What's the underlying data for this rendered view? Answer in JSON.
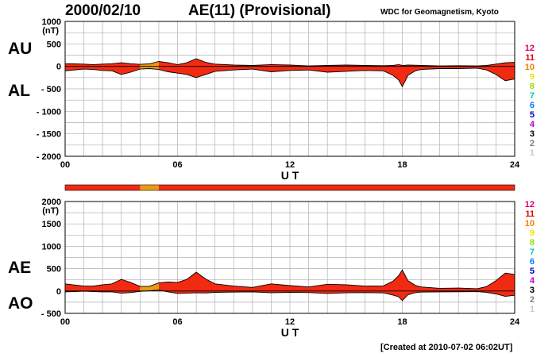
{
  "header": {
    "date": "2000/02/10",
    "title": "AE(11) (Provisional)",
    "credit": "WDC for Geomagnetism, Kyoto"
  },
  "footer": {
    "created": "[Created at 2010-07-02 06:02UT]"
  },
  "side_labels": {
    "au": "AU",
    "al": "AL",
    "ae": "AE",
    "ao": "AO"
  },
  "level_legend": {
    "labels": [
      "12",
      "11",
      "10",
      "9",
      "8",
      "7",
      "6",
      "5",
      "4",
      "3",
      "2",
      "1"
    ],
    "colors": [
      "#e0006e",
      "#e00000",
      "#f08000",
      "#e8e800",
      "#90e000",
      "#00c8c8",
      "#0080ff",
      "#0000c8",
      "#c000c8",
      "#000000",
      "#808080",
      "#c8c8c8"
    ]
  },
  "colors": {
    "fill": "#f32a12",
    "fill_alt": "#e89b14",
    "line": "#000000",
    "grid": "#b0b0b0"
  },
  "chart_data": [
    {
      "type": "area",
      "name": "AU-AL",
      "ylabel": "(nT)",
      "xlabel": "U T",
      "xlim": [
        0,
        24
      ],
      "ylim": [
        -2000,
        1000
      ],
      "xticks": [
        0,
        6,
        12,
        18,
        24
      ],
      "xtick_labels": [
        "00",
        "06",
        "12",
        "18",
        "24"
      ],
      "yticks": [
        1000,
        500,
        0,
        -500,
        -1000,
        -1500,
        -2000
      ],
      "ytick_labels": [
        "1000",
        "500",
        "0",
        "- 500",
        "- 1000",
        "- 1500",
        "- 2000"
      ],
      "highlight_hours": [
        4,
        5
      ],
      "x": [
        0,
        0.5,
        1,
        1.5,
        2,
        2.5,
        3,
        3.5,
        4,
        4.5,
        5,
        5.5,
        6,
        6.5,
        7,
        7.5,
        8,
        9,
        10,
        11,
        12,
        13,
        14,
        15,
        16,
        17,
        17.5,
        17.8,
        18,
        18.3,
        18.7,
        19,
        20,
        21,
        22,
        22.5,
        23,
        23.5,
        24
      ],
      "series": [
        {
          "name": "AU",
          "values": [
            60,
            55,
            50,
            40,
            50,
            60,
            80,
            60,
            45,
            55,
            110,
            80,
            40,
            80,
            170,
            90,
            50,
            30,
            20,
            40,
            30,
            10,
            20,
            30,
            20,
            15,
            20,
            40,
            20,
            30,
            25,
            20,
            10,
            15,
            10,
            20,
            50,
            80,
            90
          ]
        },
        {
          "name": "AL",
          "values": [
            -100,
            -80,
            -60,
            -70,
            -90,
            -100,
            -180,
            -130,
            -60,
            -50,
            -70,
            -120,
            -150,
            -180,
            -250,
            -180,
            -110,
            -80,
            -60,
            -120,
            -90,
            -80,
            -130,
            -110,
            -90,
            -100,
            -200,
            -300,
            -450,
            -200,
            -100,
            -70,
            -50,
            -50,
            -40,
            -80,
            -180,
            -320,
            -280
          ]
        }
      ]
    },
    {
      "type": "area",
      "name": "AE-AO",
      "ylabel": "(nT)",
      "xlabel": "U T",
      "xlim": [
        0,
        24
      ],
      "ylim": [
        -500,
        2000
      ],
      "xticks": [
        0,
        6,
        12,
        18,
        24
      ],
      "xtick_labels": [
        "00",
        "06",
        "12",
        "18",
        "24"
      ],
      "yticks": [
        2000,
        1500,
        1000,
        500,
        0,
        -500
      ],
      "ytick_labels": [
        "2000",
        "1500",
        "1000",
        "500",
        "0",
        "- 500"
      ],
      "highlight_hours": [
        4,
        5
      ],
      "x": [
        0,
        0.5,
        1,
        1.5,
        2,
        2.5,
        3,
        3.5,
        4,
        4.5,
        5,
        5.5,
        6,
        6.5,
        7,
        7.5,
        8,
        9,
        10,
        11,
        12,
        13,
        14,
        15,
        16,
        17,
        17.5,
        17.8,
        18,
        18.3,
        18.7,
        19,
        20,
        21,
        22,
        22.5,
        23,
        23.5,
        24
      ],
      "series": [
        {
          "name": "AE",
          "values": [
            160,
            135,
            110,
            110,
            140,
            160,
            260,
            190,
            105,
            105,
            180,
            200,
            190,
            260,
            420,
            270,
            160,
            110,
            80,
            160,
            120,
            90,
            150,
            140,
            110,
            115,
            220,
            340,
            470,
            230,
            125,
            90,
            60,
            65,
            50,
            100,
            230,
            400,
            370
          ]
        },
        {
          "name": "AO",
          "values": [
            -20,
            -12,
            -5,
            -15,
            -20,
            -20,
            -50,
            -35,
            -8,
            3,
            20,
            -20,
            -55,
            -50,
            -40,
            -45,
            -30,
            -25,
            -20,
            -40,
            -30,
            -35,
            -55,
            -40,
            -35,
            -42,
            -90,
            -130,
            -215,
            -85,
            -38,
            -25,
            -20,
            -18,
            -15,
            -30,
            -65,
            -120,
            -95
          ]
        }
      ]
    }
  ]
}
